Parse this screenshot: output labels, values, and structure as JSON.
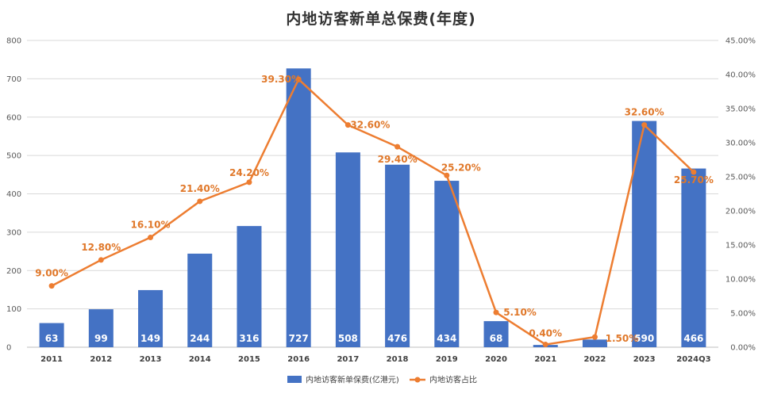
{
  "chart_data": {
    "type": "bar",
    "title": "内地访客新单总保费(年度)",
    "categories": [
      "2011",
      "2012",
      "2013",
      "2014",
      "2015",
      "2016",
      "2017",
      "2018",
      "2019",
      "2020",
      "2021",
      "2022",
      "2023",
      "2024Q3"
    ],
    "series": [
      {
        "name": "内地访客新单保费(亿港元)",
        "type": "bar",
        "axis": "left",
        "values": [
          63,
          99,
          149,
          244,
          316,
          727,
          508,
          476,
          434,
          68,
          6,
          20,
          590,
          466
        ],
        "labels": [
          "63",
          "99",
          "149",
          "244",
          "316",
          "727",
          "508",
          "476",
          "434",
          "68",
          "",
          "",
          "590",
          "466"
        ]
      },
      {
        "name": "内地访客占比",
        "type": "line",
        "axis": "right",
        "values": [
          9.0,
          12.8,
          16.1,
          21.4,
          24.2,
          39.3,
          32.6,
          29.4,
          25.2,
          5.1,
          0.4,
          1.5,
          32.6,
          25.7
        ],
        "labels": [
          "9.00%",
          "12.80%",
          "16.10%",
          "21.40%",
          "24.20%",
          "39.30%",
          "32.60%",
          "29.40%",
          "25.20%",
          "5.10%",
          "0.40%",
          "1.50%",
          "32.60%",
          "25.70%"
        ]
      }
    ],
    "y_left": {
      "min": 0,
      "max": 800,
      "ticks": [
        "0",
        "100",
        "200",
        "300",
        "400",
        "500",
        "600",
        "700",
        "800"
      ]
    },
    "y_right": {
      "min": 0,
      "max": 45,
      "ticks": [
        "0.00%",
        "5.00%",
        "10.00%",
        "15.00%",
        "20.00%",
        "25.00%",
        "30.00%",
        "35.00%",
        "40.00%",
        "45.00%"
      ]
    },
    "grid": true,
    "legend_position": "bottom",
    "colors": {
      "bar": "#4472C4",
      "line": "#ED7D31",
      "grid": "#D9D9D9"
    }
  }
}
